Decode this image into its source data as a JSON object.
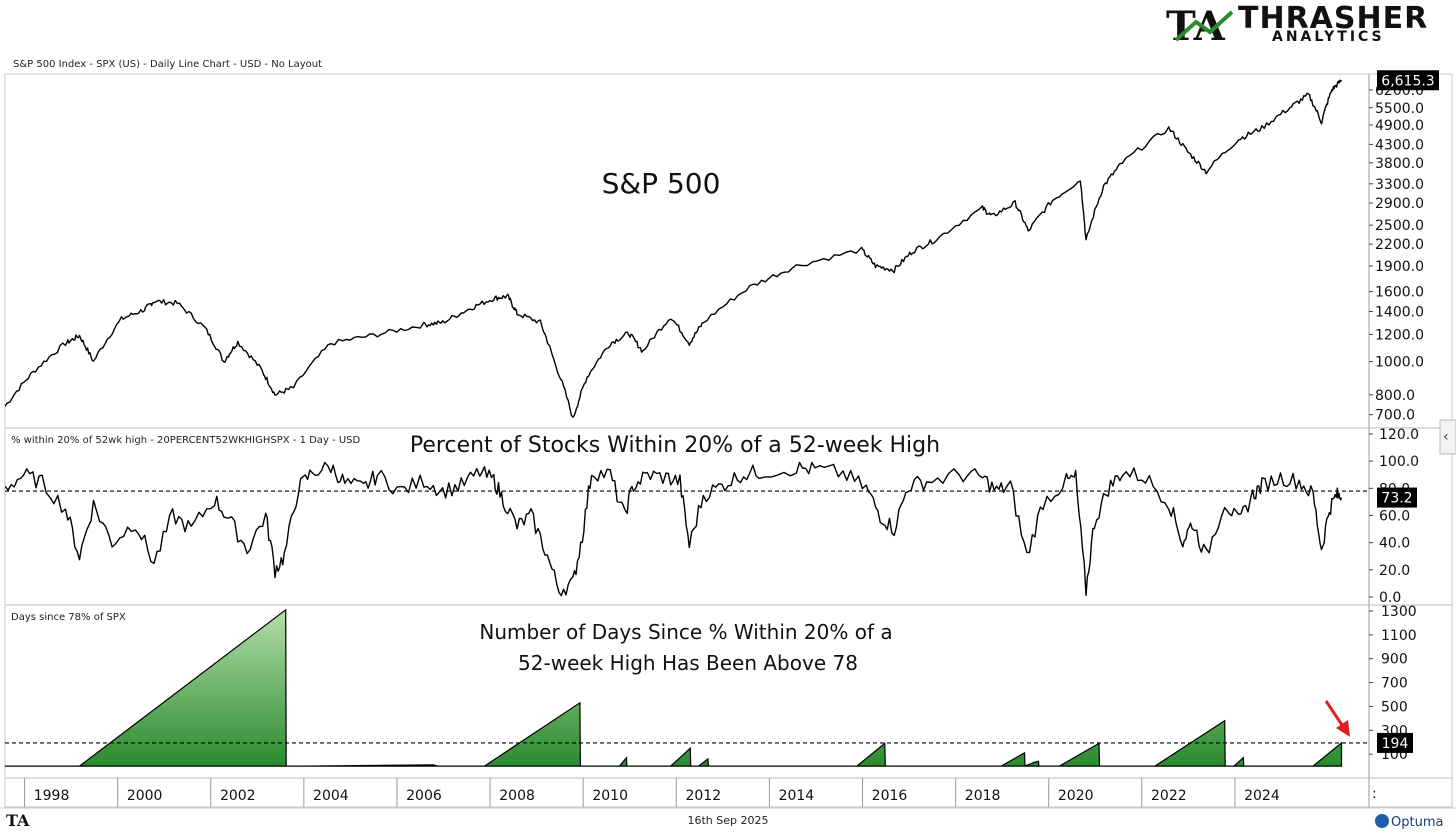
{
  "branding": {
    "logo_letters": "TA",
    "name": "THRASHER",
    "sub": "ANALYTICS",
    "footer_logo": "TA",
    "optuma": "Optuma"
  },
  "footer": {
    "date": "16th Sep 2025",
    "dot": ":"
  },
  "colors": {
    "green_dark": "#2a8a2e",
    "green_light": "#a8d8a0",
    "line": "#000000",
    "arrow": "#e02020"
  },
  "chart_data": [
    {
      "type": "line",
      "panel": "spx",
      "caption": "S&P 500 Index - SPX (US) - Daily Line Chart - USD - No Layout",
      "title": "S&P 500",
      "scale": "log",
      "ylim": [
        640,
        6900
      ],
      "y_ticks": [
        "700.0",
        "800.0",
        "1000.0",
        "1200.0",
        "1400.0",
        "1600.0",
        "1900.0",
        "2200.0",
        "2500.0",
        "2900.0",
        "3300.0",
        "3800.0",
        "4300.0",
        "4900.0",
        "5500.0",
        "6200.0"
      ],
      "last_value_label": "6,615.3",
      "last_value": 6615.3,
      "x": [
        1997.0,
        1997.6,
        1998.3,
        1998.6,
        1998.9,
        1999.5,
        2000.0,
        2000.2,
        2000.7,
        2001.3,
        2001.7,
        2002.0,
        2002.5,
        2002.8,
        2003.2,
        2004.0,
        2005.0,
        2006.0,
        2006.4,
        2007.0,
        2007.5,
        2007.8,
        2008.0,
        2008.5,
        2008.8,
        2009.2,
        2009.5,
        2010.0,
        2010.4,
        2010.7,
        2011.3,
        2011.7,
        2012.0,
        2013.0,
        2014.0,
        2015.4,
        2015.7,
        2016.1,
        2016.5,
        2017.0,
        2018.0,
        2018.2,
        2018.7,
        2018.98,
        2019.5,
        2020.1,
        2020.22,
        2020.6,
        2021.0,
        2022.0,
        2022.4,
        2022.8,
        2023.5,
        2024.0,
        2024.6,
        2025.0,
        2025.28,
        2025.5,
        2025.71
      ],
      "values": [
        740,
        930,
        1130,
        1190,
        1000,
        1330,
        1420,
        1500,
        1480,
        1250,
        1000,
        1140,
        950,
        800,
        840,
        1130,
        1200,
        1280,
        1300,
        1430,
        1530,
        1550,
        1380,
        1300,
        1000,
        680,
        900,
        1130,
        1210,
        1070,
        1350,
        1130,
        1300,
        1650,
        1900,
        2120,
        1900,
        1850,
        2100,
        2270,
        2800,
        2650,
        2900,
        2400,
        2950,
        3380,
        2240,
        3250,
        3800,
        4790,
        4100,
        3580,
        4450,
        4800,
        5500,
        6000,
        5000,
        6200,
        6615
      ]
    },
    {
      "type": "line",
      "panel": "pct",
      "caption": "% within 20% of 52wk high - 20PERCENT52WKHIGHSPX - 1 Day - USD",
      "title": "Percent of Stocks Within 20% of a 52-week High",
      "ylim": [
        0,
        120
      ],
      "y_ticks": [
        "0.0",
        "20.0",
        "40.0",
        "60.0",
        "80.0",
        "100.0",
        "120.0"
      ],
      "reference_line": 78,
      "last_value_label": "73.2",
      "last_value": 73.2,
      "x": [
        1997.0,
        1997.4,
        1997.8,
        1998.3,
        1998.6,
        1998.9,
        1999.3,
        1999.8,
        2000.2,
        2000.6,
        2001.0,
        2001.5,
        2001.8,
        2002.2,
        2002.6,
        2002.8,
        2003.0,
        2003.3,
        2003.6,
        2004.0,
        2004.3,
        2004.7,
        2005.0,
        2005.5,
        2006.0,
        2006.4,
        2006.8,
        2007.2,
        2007.5,
        2007.7,
        2008.0,
        2008.3,
        2008.6,
        2008.9,
        2009.2,
        2009.4,
        2009.6,
        2010.0,
        2010.3,
        2010.5,
        2010.8,
        2011.2,
        2011.5,
        2011.7,
        2012.0,
        2012.4,
        2012.8,
        2013.2,
        2014.0,
        2014.4,
        2015.0,
        2015.5,
        2015.8,
        2016.1,
        2016.4,
        2016.8,
        2017.5,
        2018.0,
        2018.3,
        2018.6,
        2018.95,
        2019.3,
        2019.8,
        2020.0,
        2020.22,
        2020.4,
        2020.7,
        2021.0,
        2021.5,
        2022.0,
        2022.3,
        2022.5,
        2022.8,
        2023.2,
        2023.5,
        2023.8,
        2024.0,
        2024.4,
        2024.8,
        2025.1,
        2025.28,
        2025.45,
        2025.6,
        2025.71
      ],
      "values": [
        80,
        90,
        84,
        65,
        30,
        68,
        40,
        55,
        25,
        60,
        50,
        72,
        58,
        35,
        60,
        20,
        30,
        80,
        92,
        96,
        84,
        80,
        90,
        78,
        86,
        78,
        82,
        92,
        86,
        72,
        52,
        60,
        35,
        5,
        10,
        45,
        92,
        90,
        60,
        82,
        90,
        88,
        85,
        38,
        75,
        82,
        90,
        92,
        95,
        94,
        91,
        80,
        60,
        50,
        82,
        85,
        90,
        88,
        78,
        82,
        30,
        70,
        85,
        88,
        5,
        55,
        80,
        92,
        88,
        70,
        40,
        55,
        30,
        70,
        55,
        75,
        82,
        88,
        85,
        75,
        35,
        65,
        75,
        73
      ]
    },
    {
      "type": "area",
      "panel": "days",
      "caption": "Days since 78%  of SPX",
      "title_lines": [
        "Number of Days Since % Within 20% of a",
        "52-week High Has Been Above 78"
      ],
      "ylim": [
        -100,
        1350
      ],
      "y_ticks": [
        "100",
        "300",
        "500",
        "700",
        "900",
        "1100",
        "1300"
      ],
      "reference_line": 194,
      "last_value_label": "194",
      "last_value": 194,
      "x": [
        1997.0,
        1997.7,
        1998.6,
        2003.03,
        2003.04,
        2003.5,
        2006.2,
        2006.3,
        2007.3,
        2009.35,
        2009.36,
        2010.2,
        2010.35,
        2010.36,
        2011.3,
        2011.72,
        2011.73,
        2011.9,
        2012.1,
        2012.11,
        2015.3,
        2015.9,
        2015.91,
        2018.4,
        2018.9,
        2018.91,
        2019.1,
        2019.2,
        2019.21,
        2019.65,
        2020.5,
        2020.51,
        2021.7,
        2023.2,
        2023.21,
        2023.4,
        2023.6,
        2023.61,
        2024.6,
        2025.1,
        2025.71
      ],
      "values": [
        0,
        0,
        0,
        1310,
        0,
        0,
        10,
        0,
        0,
        530,
        0,
        0,
        70,
        0,
        0,
        150,
        0,
        0,
        60,
        0,
        0,
        190,
        0,
        0,
        110,
        0,
        30,
        40,
        0,
        0,
        190,
        0,
        0,
        380,
        0,
        0,
        70,
        0,
        0,
        0,
        194
      ]
    }
  ],
  "x_axis": {
    "labels": [
      "1998",
      "2000",
      "2002",
      "2004",
      "2006",
      "2008",
      "2010",
      "2012",
      "2014",
      "2016",
      "2018",
      "2020",
      "2022",
      "2024"
    ],
    "range": [
      1997.0,
      2026.3
    ]
  }
}
